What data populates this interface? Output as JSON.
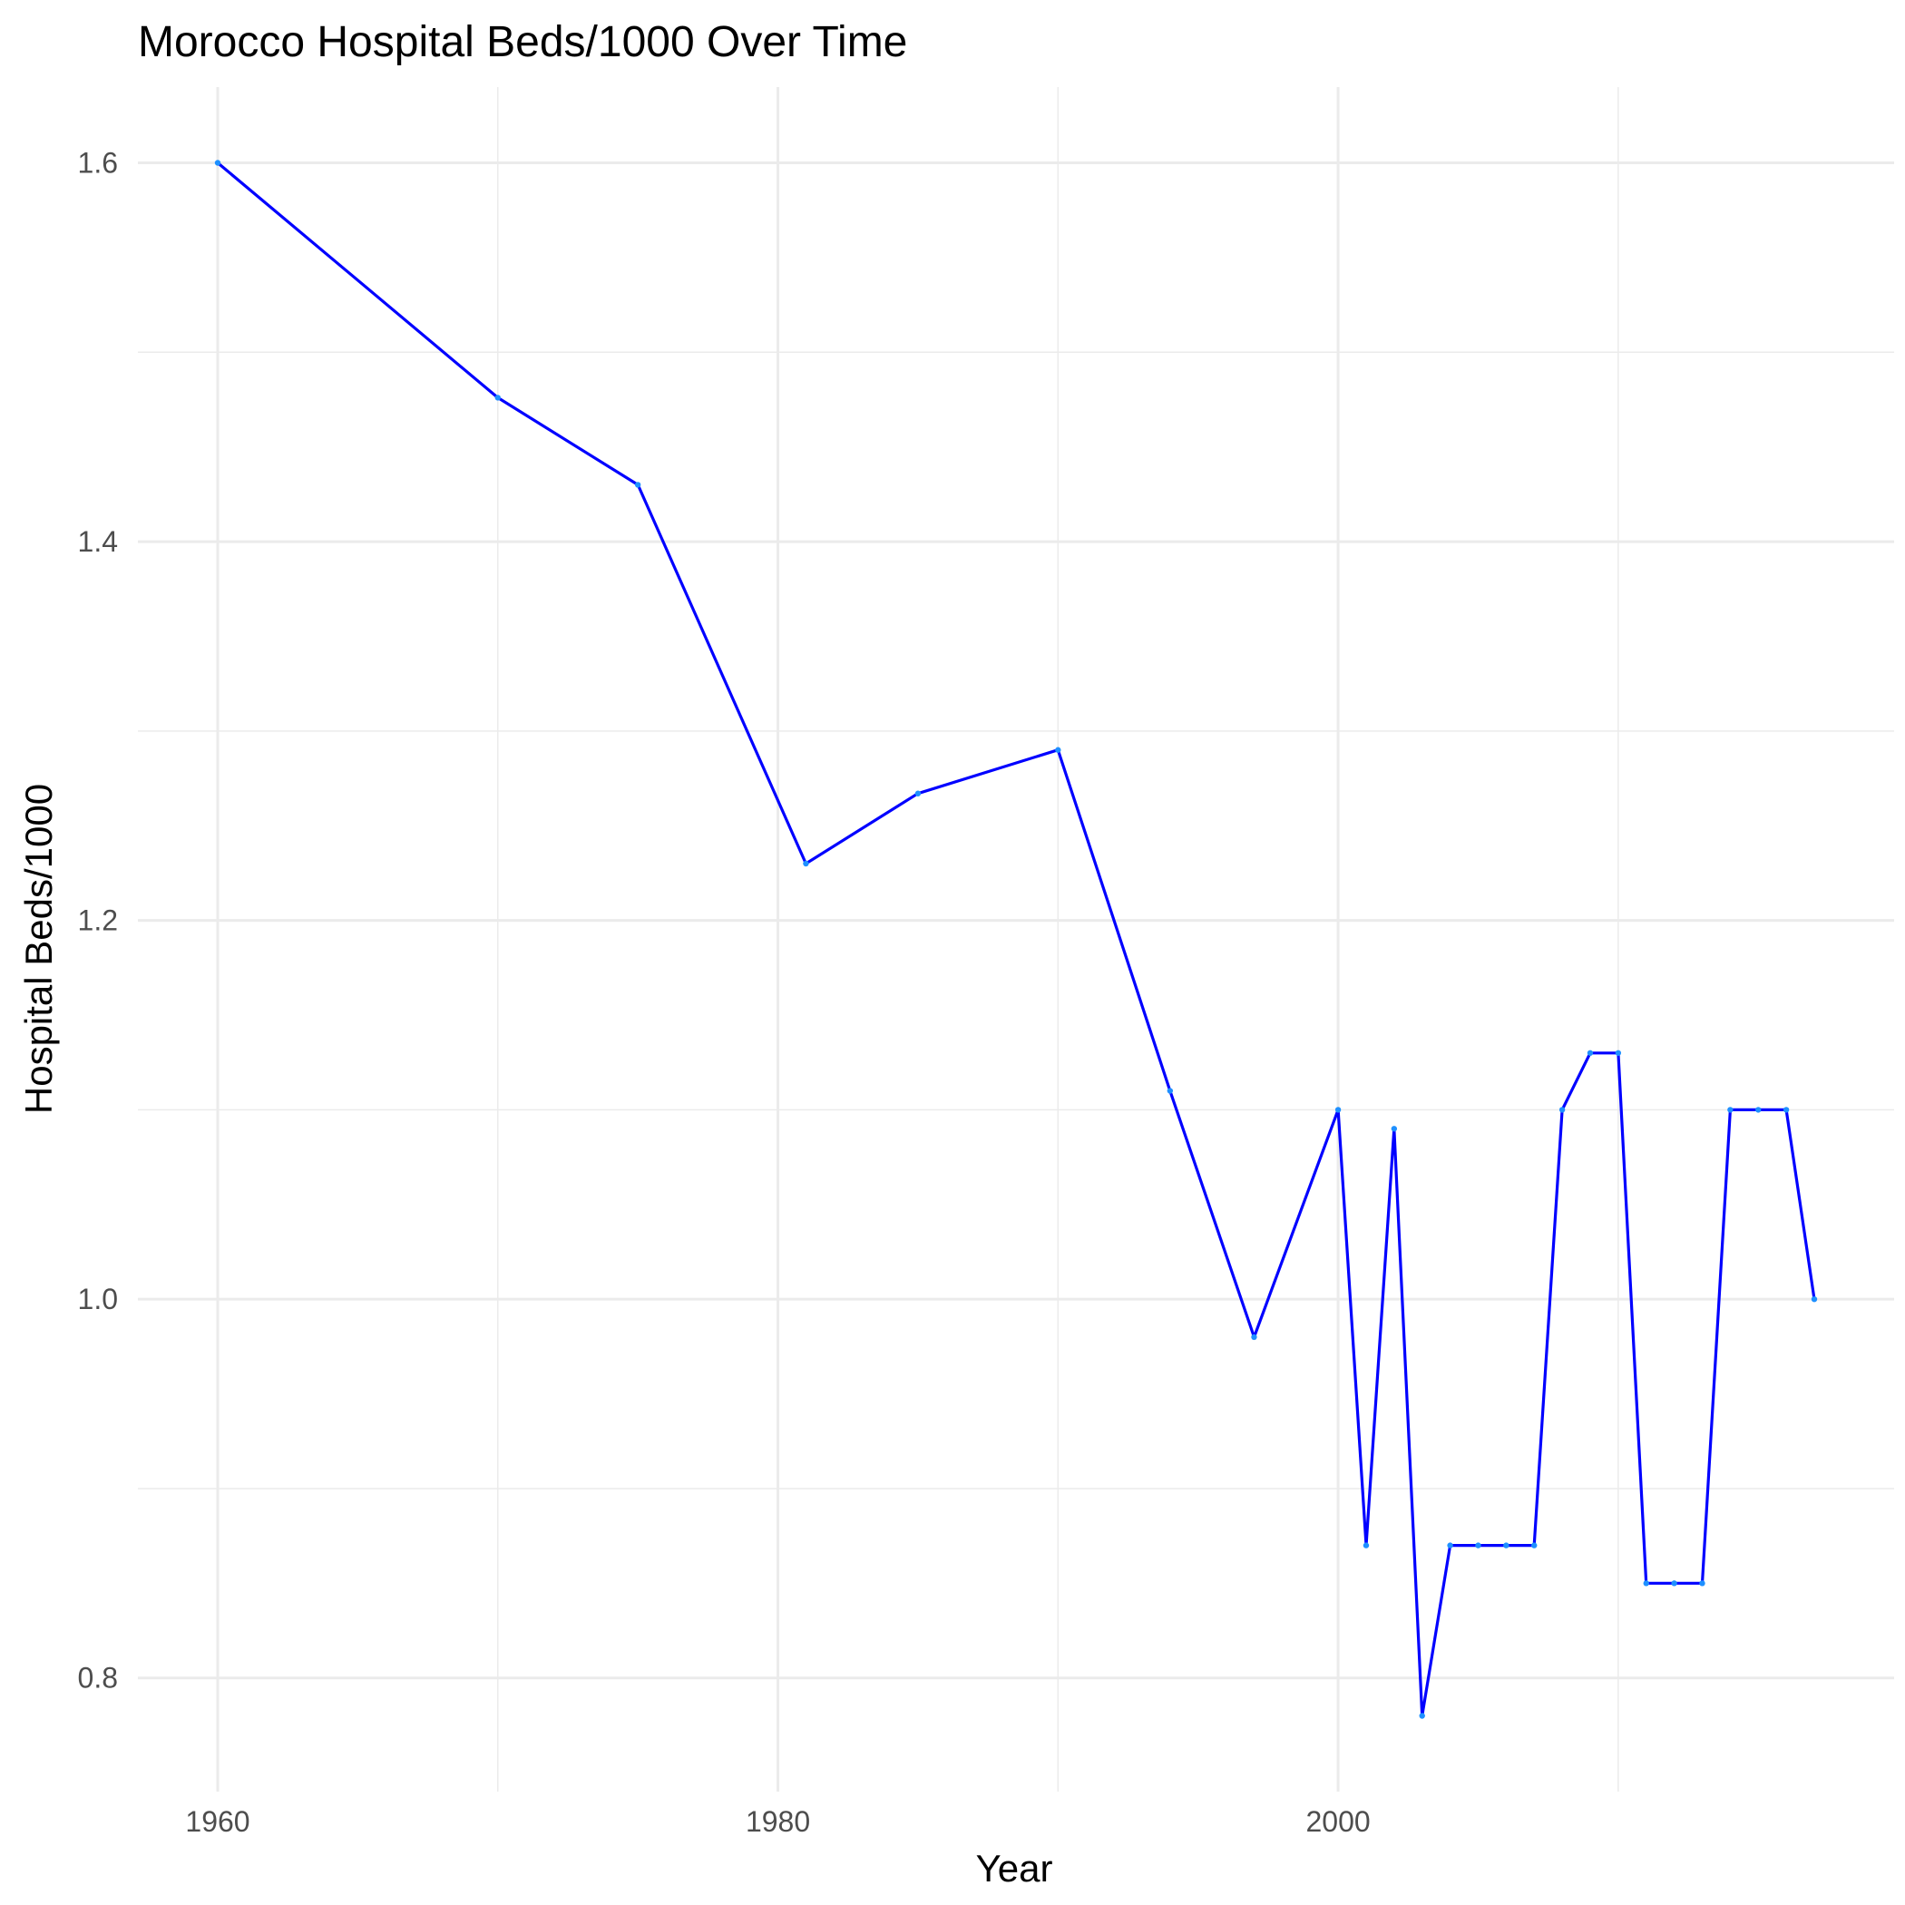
{
  "chart_data": {
    "type": "line",
    "title": "Morocco Hospital Beds/1000 Over Time",
    "xlabel": "Year",
    "ylabel": "Hospital Beds/1000",
    "xlim": [
      1957.15,
      2019.85
    ],
    "ylim": [
      0.74,
      1.64
    ],
    "x_ticks": [
      1960,
      1980,
      2000
    ],
    "x_tick_labels": [
      "1960",
      "1980",
      "2000"
    ],
    "x_minor_ticks": [
      1970,
      1990,
      2010
    ],
    "y_ticks": [
      0.8,
      1.0,
      1.2,
      1.4,
      1.6
    ],
    "y_tick_labels": [
      "0.8",
      "1.0",
      "1.2",
      "1.4",
      "1.6"
    ],
    "y_minor_ticks": [
      0.9,
      1.1,
      1.3,
      1.5
    ],
    "grid": true,
    "legend": "none",
    "colors": {
      "line": "#0000ff",
      "points": "#1e90ff"
    },
    "series": [
      {
        "x": [
          1960,
          1970,
          1975,
          1981,
          1985,
          1990,
          1994,
          1997,
          2000,
          2001,
          2002,
          2003,
          2004,
          2005,
          2006,
          2007,
          2008,
          2009,
          2010,
          2011,
          2012,
          2013,
          2014,
          2015,
          2016,
          2017
        ],
        "values": [
          1.6,
          1.476,
          1.43,
          1.23,
          1.267,
          1.29,
          1.11,
          0.98,
          1.1,
          0.87,
          1.09,
          0.78,
          0.87,
          0.87,
          0.87,
          0.87,
          1.1,
          1.13,
          1.13,
          0.85,
          0.85,
          0.85,
          1.1,
          1.1,
          1.1,
          1.0
        ]
      }
    ]
  }
}
